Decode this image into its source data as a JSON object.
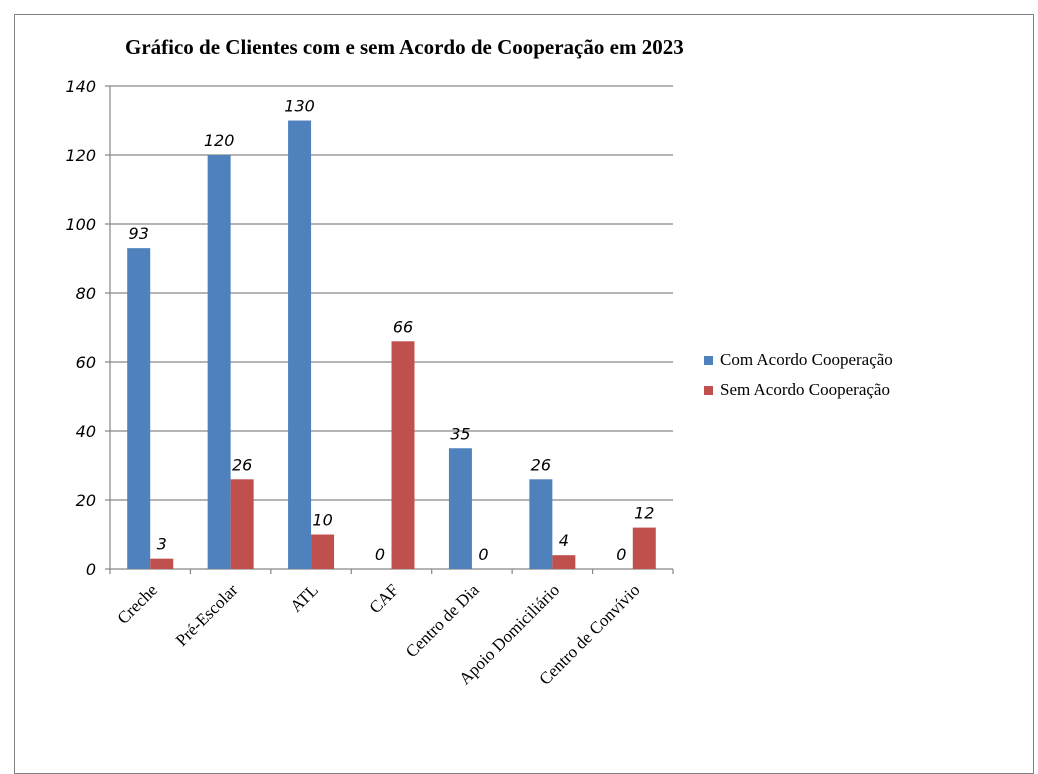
{
  "chart_data": {
    "type": "bar",
    "title": "Gráfico de Clientes com e sem Acordo de Cooperação  em 2023",
    "xlabel": "",
    "ylabel": "",
    "ylim": [
      0,
      140
    ],
    "yticks": [
      0,
      20,
      40,
      60,
      80,
      100,
      120,
      140
    ],
    "grid": true,
    "legend_position": "right",
    "categories": [
      "Creche",
      "Pré-Escolar",
      "ATL",
      "CAF",
      "Centro de Dia",
      "Apoio Domiciliário",
      "Centro de Convívio"
    ],
    "series": [
      {
        "name": "Com Acordo Cooperação",
        "color": "#4F81BD",
        "values": [
          93,
          120,
          130,
          0,
          35,
          26,
          0
        ]
      },
      {
        "name": "Sem Acordo Cooperação",
        "color": "#C0504D",
        "values": [
          3,
          26,
          10,
          66,
          0,
          4,
          12
        ]
      }
    ]
  }
}
